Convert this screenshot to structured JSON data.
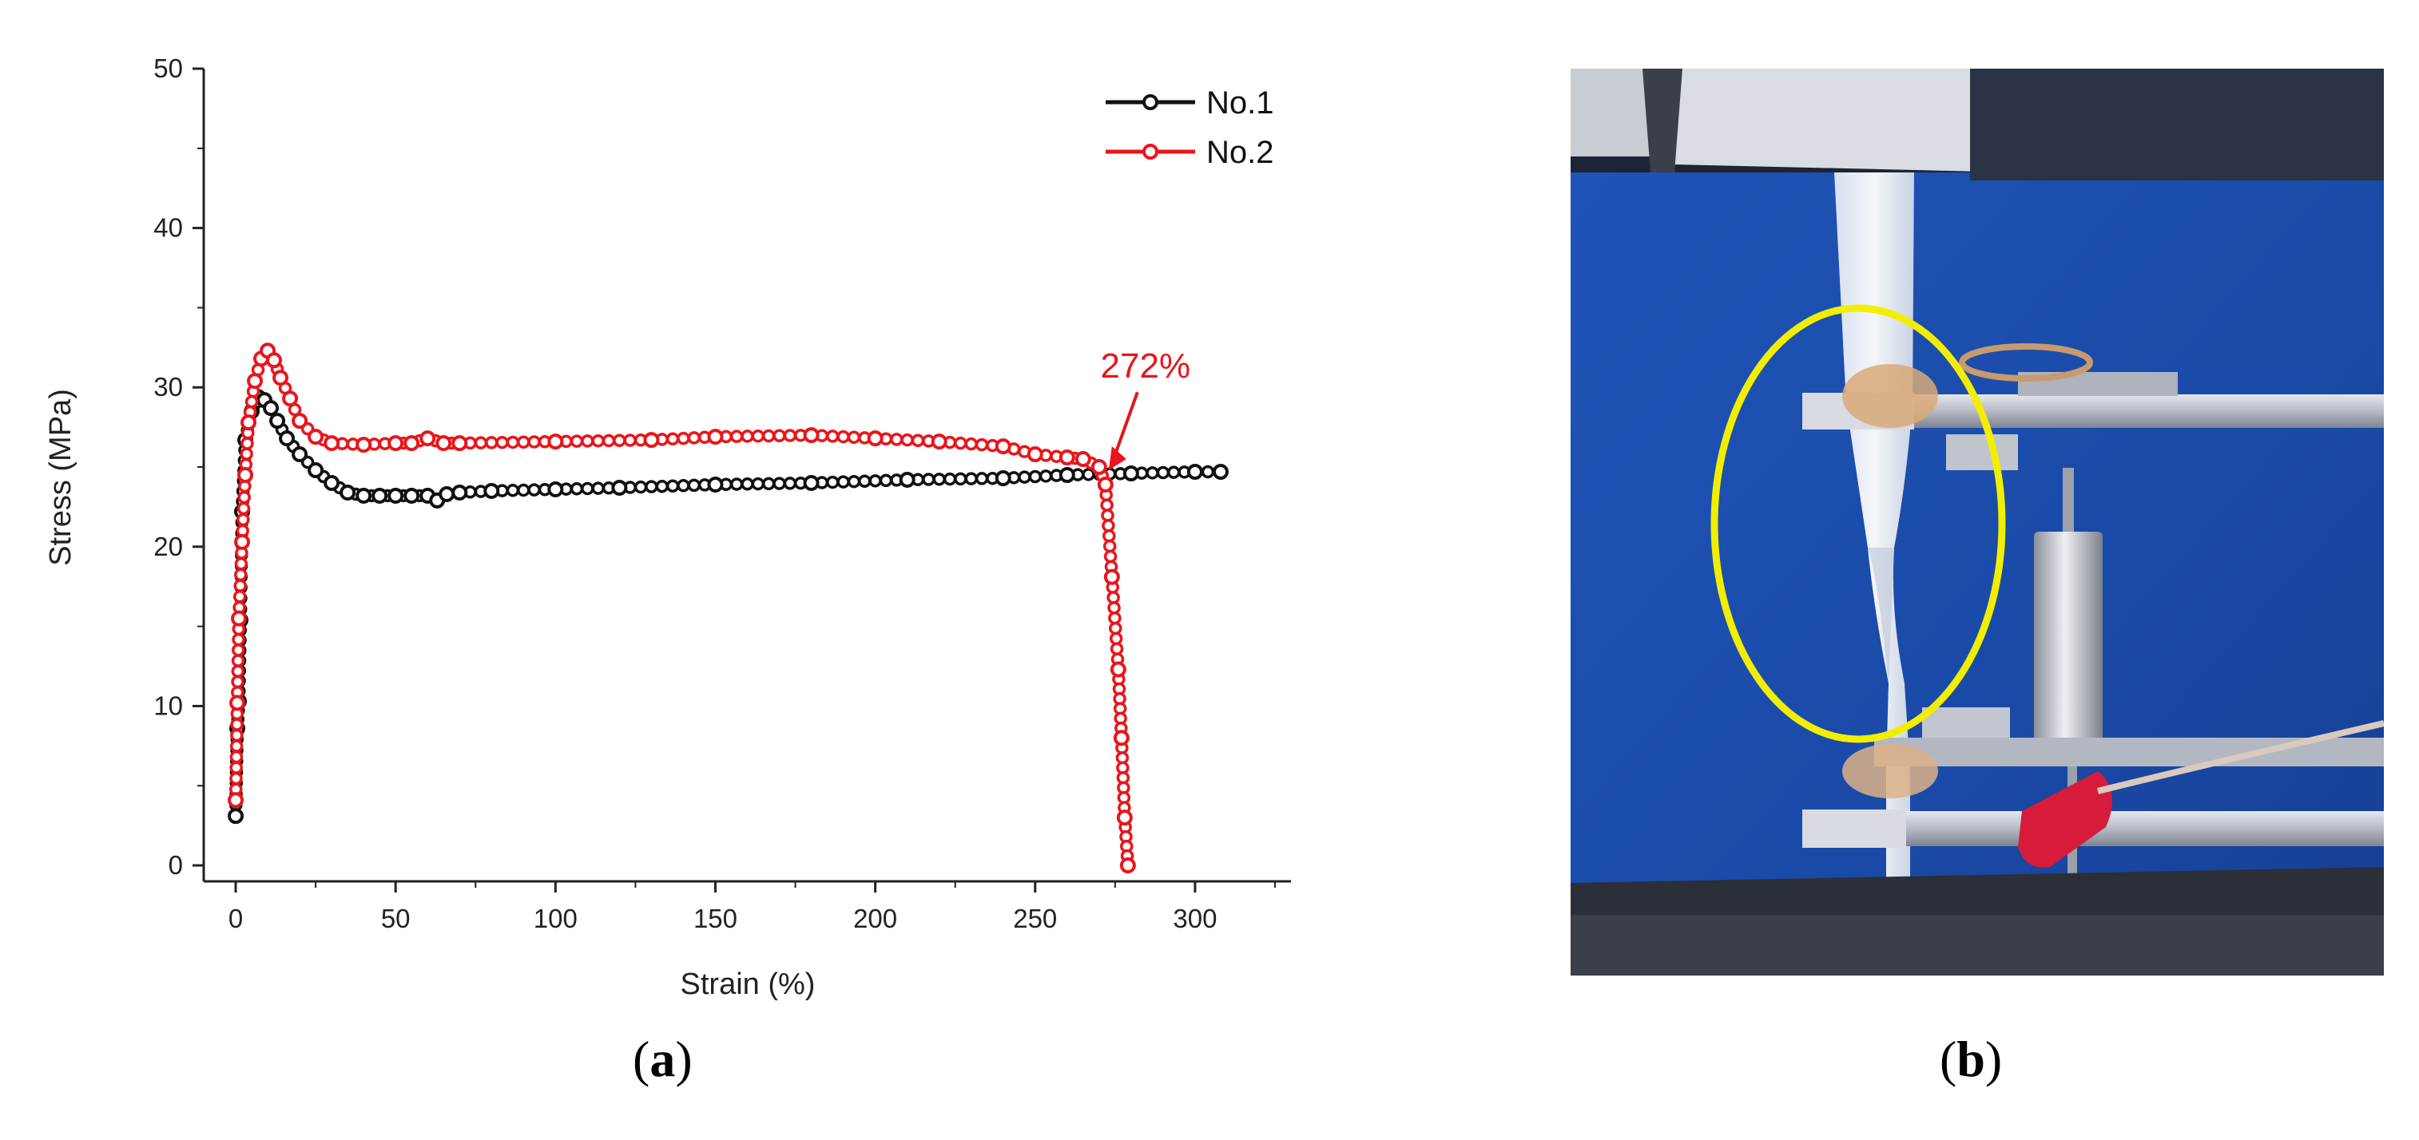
{
  "chart_data": {
    "type": "line",
    "title": "",
    "xlabel": "Strain (%)",
    "ylabel": "Stress (MPa)",
    "xlim": [
      -10,
      330
    ],
    "ylim": [
      -1,
      50
    ],
    "xticks": [
      0,
      50,
      100,
      150,
      200,
      250,
      300
    ],
    "yticks": [
      0,
      10,
      20,
      30,
      40,
      50
    ],
    "legend": "top-right",
    "grid": false,
    "series": [
      {
        "name": "No.1",
        "color": "#111111",
        "marker": "circle",
        "x": [
          0,
          0.5,
          1,
          1.5,
          2,
          3,
          5,
          7,
          9,
          11,
          13,
          16,
          20,
          25,
          30,
          35,
          40,
          45,
          50,
          55,
          60,
          63,
          66,
          70,
          80,
          100,
          120,
          150,
          180,
          210,
          240,
          260,
          280,
          300,
          308
        ],
        "y": [
          3.1,
          8.6,
          10.3,
          15.4,
          22.2,
          26.7,
          28.5,
          29.4,
          29.2,
          28.7,
          27.9,
          26.8,
          25.8,
          24.8,
          24.0,
          23.4,
          23.2,
          23.2,
          23.2,
          23.2,
          23.2,
          22.9,
          23.3,
          23.4,
          23.5,
          23.6,
          23.7,
          23.9,
          24.0,
          24.2,
          24.3,
          24.5,
          24.6,
          24.7,
          24.7
        ]
      },
      {
        "name": "No.2",
        "color": "#e8161c",
        "marker": "circle",
        "x": [
          0,
          0.5,
          1,
          2,
          3,
          4,
          6,
          8,
          10,
          12,
          14,
          17,
          20,
          25,
          30,
          40,
          50,
          55,
          60,
          65,
          70,
          100,
          130,
          150,
          180,
          200,
          220,
          240,
          250,
          260,
          265,
          270,
          272,
          274,
          276,
          277,
          278,
          279
        ],
        "y": [
          4.1,
          10.2,
          15.5,
          20.3,
          24.5,
          27.8,
          30.4,
          31.8,
          32.3,
          31.7,
          30.6,
          29.3,
          27.9,
          26.9,
          26.5,
          26.4,
          26.5,
          26.5,
          26.8,
          26.5,
          26.5,
          26.6,
          26.7,
          26.9,
          27.0,
          26.8,
          26.6,
          26.3,
          25.8,
          25.6,
          25.5,
          25.0,
          23.9,
          18.1,
          12.3,
          8.0,
          3.0,
          0.0
        ]
      }
    ],
    "annotations": [
      {
        "text": "272%",
        "color": "#e8161c",
        "x": 272,
        "y": 24.5
      }
    ]
  },
  "labels": {
    "panel_a": "a",
    "panel_b": "b",
    "paren_open": "(",
    "paren_close": ")"
  },
  "photo": {
    "description_icon": "tensile-test-photo",
    "highlight_color": "#f2ee00"
  }
}
